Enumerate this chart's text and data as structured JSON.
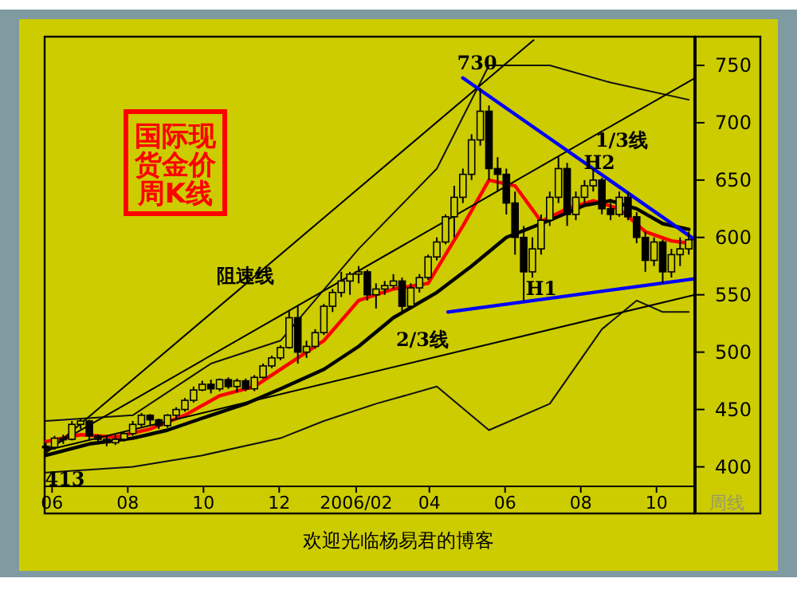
{
  "chart_data": {
    "type": "candlestick",
    "title": "国际现货金价周K线",
    "x": [
      "2005-05-27",
      "2005-06-03",
      "2005-06-10",
      "2005-06-17",
      "2005-06-24",
      "2005-07-01",
      "2005-07-08",
      "2005-07-15",
      "2005-07-22",
      "2005-07-29",
      "2005-08-05",
      "2005-08-12",
      "2005-08-19",
      "2005-08-26",
      "2005-09-02",
      "2005-09-09",
      "2005-09-16",
      "2005-09-23",
      "2005-09-30",
      "2005-10-07",
      "2005-10-14",
      "2005-10-21",
      "2005-10-28",
      "2005-11-04",
      "2005-11-11",
      "2005-11-18",
      "2005-11-25",
      "2005-12-02",
      "2005-12-09",
      "2005-12-16",
      "2005-12-23",
      "2005-12-30",
      "2006-01-06",
      "2006-01-13",
      "2006-01-20",
      "2006-01-27",
      "2006-02-03",
      "2006-02-10",
      "2006-02-17",
      "2006-02-24",
      "2006-03-03",
      "2006-03-10",
      "2006-03-17",
      "2006-03-24",
      "2006-03-31",
      "2006-04-07",
      "2006-04-14",
      "2006-04-21",
      "2006-04-28",
      "2006-05-05",
      "2006-05-12",
      "2006-05-19",
      "2006-05-26",
      "2006-06-02",
      "2006-06-09",
      "2006-06-16",
      "2006-06-23",
      "2006-06-30",
      "2006-07-07",
      "2006-07-14",
      "2006-07-21",
      "2006-07-28",
      "2006-08-04",
      "2006-08-11",
      "2006-08-18",
      "2006-08-25",
      "2006-09-01",
      "2006-09-08",
      "2006-09-15",
      "2006-09-22",
      "2006-09-29",
      "2006-10-06",
      "2006-10-13",
      "2006-10-20",
      "2006-10-27"
    ],
    "ohlc": [
      [
        418,
        421,
        413,
        417
      ],
      [
        417,
        427,
        415,
        425
      ],
      [
        425,
        428,
        420,
        424
      ],
      [
        424,
        440,
        423,
        437
      ],
      [
        437,
        442,
        433,
        440
      ],
      [
        440,
        441,
        424,
        427
      ],
      [
        427,
        428,
        421,
        424
      ],
      [
        424,
        427,
        418,
        421
      ],
      [
        421,
        428,
        419,
        424
      ],
      [
        424,
        430,
        422,
        429
      ],
      [
        429,
        440,
        427,
        437
      ],
      [
        437,
        447,
        435,
        445
      ],
      [
        445,
        446,
        436,
        441
      ],
      [
        441,
        442,
        433,
        436
      ],
      [
        436,
        446,
        434,
        445
      ],
      [
        445,
        452,
        442,
        450
      ],
      [
        450,
        460,
        448,
        458
      ],
      [
        458,
        470,
        456,
        467
      ],
      [
        467,
        475,
        466,
        472
      ],
      [
        472,
        476,
        464,
        468
      ],
      [
        468,
        477,
        466,
        476
      ],
      [
        476,
        478,
        468,
        470
      ],
      [
        470,
        477,
        465,
        475
      ],
      [
        475,
        477,
        466,
        468
      ],
      [
        468,
        480,
        466,
        478
      ],
      [
        478,
        490,
        477,
        488
      ],
      [
        488,
        497,
        486,
        495
      ],
      [
        495,
        506,
        493,
        504
      ],
      [
        504,
        536,
        503,
        530
      ],
      [
        530,
        540,
        490,
        500
      ],
      [
        500,
        510,
        495,
        505
      ],
      [
        505,
        520,
        503,
        517
      ],
      [
        517,
        542,
        515,
        540
      ],
      [
        540,
        555,
        535,
        552
      ],
      [
        552,
        570,
        548,
        562
      ],
      [
        562,
        570,
        550,
        568
      ],
      [
        568,
        575,
        560,
        570
      ],
      [
        570,
        572,
        545,
        550
      ],
      [
        550,
        560,
        538,
        555
      ],
      [
        555,
        562,
        550,
        558
      ],
      [
        558,
        568,
        555,
        562
      ],
      [
        562,
        565,
        535,
        540
      ],
      [
        540,
        560,
        538,
        556
      ],
      [
        556,
        568,
        552,
        565
      ],
      [
        565,
        585,
        563,
        583
      ],
      [
        583,
        600,
        580,
        596
      ],
      [
        596,
        620,
        594,
        618
      ],
      [
        618,
        645,
        600,
        635
      ],
      [
        635,
        660,
        630,
        655
      ],
      [
        655,
        690,
        650,
        685
      ],
      [
        685,
        730,
        680,
        710
      ],
      [
        710,
        715,
        650,
        660
      ],
      [
        660,
        670,
        640,
        655
      ],
      [
        655,
        660,
        620,
        630
      ],
      [
        630,
        640,
        585,
        600
      ],
      [
        600,
        610,
        545,
        570
      ],
      [
        570,
        600,
        565,
        590
      ],
      [
        590,
        620,
        585,
        615
      ],
      [
        615,
        640,
        610,
        635
      ],
      [
        635,
        670,
        630,
        660
      ],
      [
        660,
        665,
        610,
        620
      ],
      [
        620,
        640,
        615,
        635
      ],
      [
        635,
        650,
        630,
        645
      ],
      [
        645,
        660,
        640,
        650
      ],
      [
        650,
        652,
        620,
        625
      ],
      [
        625,
        630,
        615,
        620
      ],
      [
        620,
        640,
        618,
        635
      ],
      [
        635,
        640,
        615,
        618
      ],
      [
        618,
        622,
        595,
        600
      ],
      [
        600,
        605,
        570,
        580
      ],
      [
        580,
        600,
        575,
        596
      ],
      [
        596,
        598,
        560,
        570
      ],
      [
        570,
        590,
        565,
        585
      ],
      [
        585,
        600,
        575,
        590
      ],
      [
        590,
        605,
        585,
        598
      ]
    ],
    "color": "#000000",
    "series": [
      {
        "type": "line",
        "color": "#ff0000",
        "x": [
          "2005-05-27",
          "2005-06-24",
          "2005-07-22",
          "2005-08-19",
          "2005-09-16",
          "2005-10-14",
          "2005-11-11",
          "2005-12-09",
          "2006-01-06",
          "2006-02-03",
          "2006-03-03",
          "2006-03-31",
          "2006-04-28",
          "2006-05-19",
          "2006-06-09",
          "2006-06-30",
          "2006-07-21",
          "2006-08-11",
          "2006-09-01",
          "2006-09-22",
          "2006-10-13",
          "2006-10-27"
        ],
        "values": [
          422,
          428,
          426,
          433,
          445,
          462,
          470,
          490,
          510,
          545,
          555,
          560,
          610,
          650,
          645,
          614,
          625,
          632,
          625,
          605,
          597,
          595
        ]
      },
      {
        "type": "line",
        "color": "#000000",
        "x": [
          "2005-05-27",
          "2005-07-01",
          "2005-08-05",
          "2005-09-02",
          "2005-10-07",
          "2005-11-04",
          "2005-12-02",
          "2006-01-06",
          "2006-02-03",
          "2006-03-03",
          "2006-04-07",
          "2006-05-05",
          "2006-06-02",
          "2006-07-07",
          "2006-08-04",
          "2006-08-25",
          "2006-09-15",
          "2006-10-06",
          "2006-10-27"
        ],
        "values": [
          410,
          420,
          425,
          432,
          445,
          455,
          468,
          485,
          505,
          530,
          552,
          575,
          600,
          615,
          628,
          632,
          625,
          612,
          607
        ]
      },
      {
        "type": "line",
        "color": "#111111",
        "x": [
          "2005-05-27",
          "2005-08-05",
          "2005-10-07",
          "2005-12-02",
          "2006-02-03",
          "2006-04-07",
          "2006-05-19",
          "2006-07-07",
          "2006-08-25",
          "2006-10-27"
        ],
        "values": [
          440,
          445,
          490,
          510,
          590,
          660,
          750,
          750,
          735,
          720
        ]
      },
      {
        "type": "line",
        "color": "#111111",
        "x": [
          "2005-05-27",
          "2005-08-05",
          "2005-09-30",
          "2005-12-02",
          "2006-01-06",
          "2006-02-17",
          "2006-04-07",
          "2006-05-19",
          "2006-07-07",
          "2006-08-18",
          "2006-09-15",
          "2006-10-06",
          "2006-10-27"
        ],
        "values": [
          395,
          400,
          410,
          425,
          440,
          455,
          470,
          432,
          455,
          520,
          545,
          535,
          535
        ]
      },
      {
        "type": "line",
        "color": "#000000",
        "x": [
          "2005-05-26",
          "2006-06-24"
        ],
        "values": [
          411,
          772
        ]
      },
      {
        "type": "line",
        "color": "#000000",
        "x": [
          "2005-05-26",
          "2006-11-01"
        ],
        "values": [
          414,
          739
        ]
      },
      {
        "type": "line",
        "color": "#000000",
        "x": [
          "2005-05-26",
          "2006-11-01"
        ],
        "values": [
          414,
          550
        ]
      },
      {
        "type": "line",
        "color": "#0000ff",
        "x": [
          "2006-04-28",
          "2006-11-01"
        ],
        "values": [
          739,
          598
        ]
      },
      {
        "type": "line",
        "color": "#0000ff",
        "x": [
          "2006-04-16",
          "2006-11-01"
        ],
        "values": [
          535,
          564
        ]
      }
    ],
    "xlim": [
      "2005-05-26",
      "2006-11-01"
    ],
    "xticks": [
      {
        "value": "2005-06-01",
        "label": "06"
      },
      {
        "value": "2005-08-01",
        "label": "08"
      },
      {
        "value": "2005-10-01",
        "label": "10"
      },
      {
        "value": "2005-12-01",
        "label": "12"
      },
      {
        "value": "2006-02-01",
        "label": "2006/02"
      },
      {
        "value": "2006-04-01",
        "label": "04"
      },
      {
        "value": "2006-06-01",
        "label": "06"
      },
      {
        "value": "2006-08-01",
        "label": "08"
      },
      {
        "value": "2006-10-01",
        "label": "10"
      }
    ],
    "ylim": [
      383,
      775
    ],
    "yticks": [
      400,
      450,
      500,
      550,
      600,
      650,
      700,
      750
    ],
    "annotations": [
      {
        "text": "730",
        "x": "2006-05-12",
        "y": 730
      },
      {
        "text": "413",
        "x": "2005-05-27",
        "y": 413
      },
      {
        "text": "H1",
        "x": "2006-06-20",
        "y": 547
      },
      {
        "text": "H2",
        "x": "2006-08-16",
        "y": 654
      },
      {
        "text": "阻速线",
        "x": "2005-11-04",
        "y": 561
      },
      "1/3线",
      "2/3线",
      "周线",
      "欢迎光临杨易君的博客"
    ]
  }
}
